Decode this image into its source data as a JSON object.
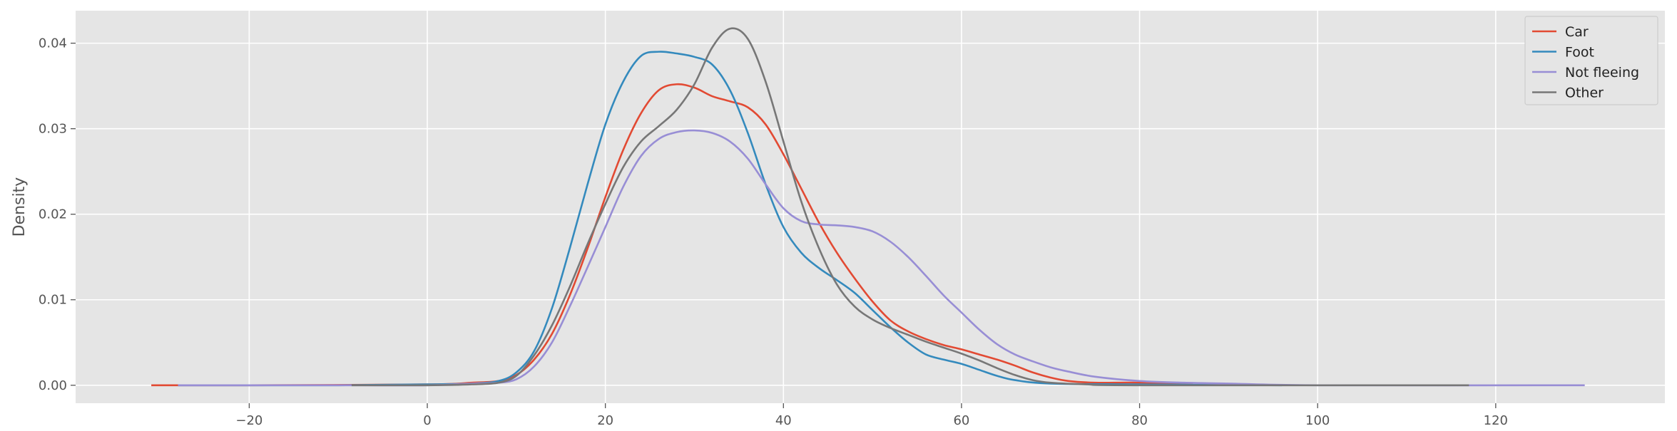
{
  "chart_data": {
    "type": "line",
    "xlabel": "",
    "ylabel": "Density",
    "xlim": [
      -39.5,
      139
    ],
    "ylim": [
      -0.0021,
      0.0438
    ],
    "xticks": [
      -20,
      0,
      20,
      40,
      60,
      80,
      100,
      120
    ],
    "xtick_labels": [
      "−20",
      "0",
      "20",
      "40",
      "60",
      "80",
      "100",
      "120"
    ],
    "yticks": [
      0.0,
      0.01,
      0.02,
      0.03,
      0.04
    ],
    "ytick_labels": [
      "0.00",
      "0.01",
      "0.02",
      "0.03",
      "0.04"
    ],
    "grid": true,
    "legend_position": "top-right",
    "background_color": "#e5e5e5",
    "series": [
      {
        "name": "Car",
        "color": "#e24a33",
        "points": [
          [
            -31,
            0
          ],
          [
            -20,
            0
          ],
          [
            0,
            0.0001
          ],
          [
            5,
            0.0003
          ],
          [
            8,
            0.0005
          ],
          [
            10,
            0.0012
          ],
          [
            12,
            0.003
          ],
          [
            14,
            0.006
          ],
          [
            16,
            0.0105
          ],
          [
            18,
            0.016
          ],
          [
            20,
            0.022
          ],
          [
            22,
            0.0275
          ],
          [
            24,
            0.0318
          ],
          [
            26,
            0.0345
          ],
          [
            28,
            0.0352
          ],
          [
            30,
            0.0348
          ],
          [
            32,
            0.0338
          ],
          [
            34,
            0.0332
          ],
          [
            36,
            0.0325
          ],
          [
            38,
            0.0305
          ],
          [
            40,
            0.027
          ],
          [
            42,
            0.023
          ],
          [
            44,
            0.019
          ],
          [
            46,
            0.0155
          ],
          [
            48,
            0.0125
          ],
          [
            50,
            0.0098
          ],
          [
            52,
            0.0076
          ],
          [
            54,
            0.0063
          ],
          [
            56,
            0.0054
          ],
          [
            58,
            0.0047
          ],
          [
            60,
            0.0042
          ],
          [
            62,
            0.0036
          ],
          [
            64,
            0.003
          ],
          [
            66,
            0.0023
          ],
          [
            68,
            0.0015
          ],
          [
            70,
            0.0009
          ],
          [
            72,
            0.0005
          ],
          [
            75,
            0.0003
          ],
          [
            80,
            0.0003
          ],
          [
            86,
            0.0001
          ]
        ]
      },
      {
        "name": "Foot",
        "color": "#348abd",
        "points": [
          [
            -28,
            0
          ],
          [
            -10,
            0
          ],
          [
            0,
            0.0001
          ],
          [
            5,
            0.0002
          ],
          [
            8,
            0.0005
          ],
          [
            10,
            0.0015
          ],
          [
            12,
            0.004
          ],
          [
            14,
            0.009
          ],
          [
            16,
            0.016
          ],
          [
            18,
            0.0235
          ],
          [
            20,
            0.0305
          ],
          [
            22,
            0.0355
          ],
          [
            24,
            0.0385
          ],
          [
            26,
            0.039
          ],
          [
            28,
            0.0388
          ],
          [
            30,
            0.0384
          ],
          [
            32,
            0.0375
          ],
          [
            34,
            0.0345
          ],
          [
            36,
            0.0295
          ],
          [
            38,
            0.0235
          ],
          [
            40,
            0.0185
          ],
          [
            42,
            0.0155
          ],
          [
            44,
            0.0137
          ],
          [
            46,
            0.0123
          ],
          [
            48,
            0.0108
          ],
          [
            50,
            0.0088
          ],
          [
            52,
            0.0068
          ],
          [
            54,
            0.005
          ],
          [
            56,
            0.0036
          ],
          [
            58,
            0.003
          ],
          [
            60,
            0.0025
          ],
          [
            62,
            0.0018
          ],
          [
            64,
            0.0011
          ],
          [
            66,
            0.0006
          ],
          [
            70,
            0.0002
          ],
          [
            80,
            0.0001
          ],
          [
            96,
            0
          ]
        ]
      },
      {
        "name": "Not fleeing",
        "color": "#988ed5",
        "points": [
          [
            -28,
            0
          ],
          [
            -10,
            0
          ],
          [
            0,
            0
          ],
          [
            5,
            0.0002
          ],
          [
            8,
            0.0003
          ],
          [
            10,
            0.0007
          ],
          [
            12,
            0.0022
          ],
          [
            14,
            0.005
          ],
          [
            16,
            0.0092
          ],
          [
            18,
            0.0138
          ],
          [
            20,
            0.0185
          ],
          [
            22,
            0.0232
          ],
          [
            24,
            0.0268
          ],
          [
            26,
            0.0288
          ],
          [
            28,
            0.0296
          ],
          [
            30,
            0.0298
          ],
          [
            32,
            0.0295
          ],
          [
            34,
            0.0285
          ],
          [
            36,
            0.0265
          ],
          [
            38,
            0.0235
          ],
          [
            40,
            0.0207
          ],
          [
            42,
            0.0192
          ],
          [
            44,
            0.0188
          ],
          [
            46,
            0.0187
          ],
          [
            48,
            0.0185
          ],
          [
            50,
            0.018
          ],
          [
            52,
            0.0168
          ],
          [
            54,
            0.015
          ],
          [
            56,
            0.0128
          ],
          [
            58,
            0.0105
          ],
          [
            60,
            0.0085
          ],
          [
            62,
            0.0065
          ],
          [
            64,
            0.0048
          ],
          [
            66,
            0.0036
          ],
          [
            68,
            0.0028
          ],
          [
            70,
            0.0021
          ],
          [
            72,
            0.0016
          ],
          [
            75,
            0.001
          ],
          [
            80,
            0.0005
          ],
          [
            85,
            0.0003
          ],
          [
            90,
            0.0002
          ],
          [
            100,
            0
          ],
          [
            130,
            0
          ]
        ]
      },
      {
        "name": "Other",
        "color": "#777777",
        "points": [
          [
            -8.5,
            0
          ],
          [
            0,
            0
          ],
          [
            5,
            0.0001
          ],
          [
            8,
            0.0003
          ],
          [
            10,
            0.0011
          ],
          [
            12,
            0.0035
          ],
          [
            14,
            0.007
          ],
          [
            16,
            0.0115
          ],
          [
            18,
            0.0165
          ],
          [
            20,
            0.0212
          ],
          [
            22,
            0.0255
          ],
          [
            24,
            0.0285
          ],
          [
            26,
            0.0303
          ],
          [
            28,
            0.0322
          ],
          [
            30,
            0.0352
          ],
          [
            32,
            0.0395
          ],
          [
            34,
            0.0417
          ],
          [
            36,
            0.0405
          ],
          [
            38,
            0.0355
          ],
          [
            40,
            0.0285
          ],
          [
            42,
            0.0215
          ],
          [
            44,
            0.016
          ],
          [
            46,
            0.0118
          ],
          [
            48,
            0.0092
          ],
          [
            50,
            0.0077
          ],
          [
            52,
            0.0067
          ],
          [
            54,
            0.0059
          ],
          [
            56,
            0.0051
          ],
          [
            58,
            0.0044
          ],
          [
            60,
            0.0037
          ],
          [
            62,
            0.0029
          ],
          [
            64,
            0.002
          ],
          [
            66,
            0.0012
          ],
          [
            68,
            0.0006
          ],
          [
            70,
            0.0003
          ],
          [
            74,
            0.0001
          ],
          [
            80,
            0
          ],
          [
            117,
            0
          ]
        ]
      }
    ]
  }
}
